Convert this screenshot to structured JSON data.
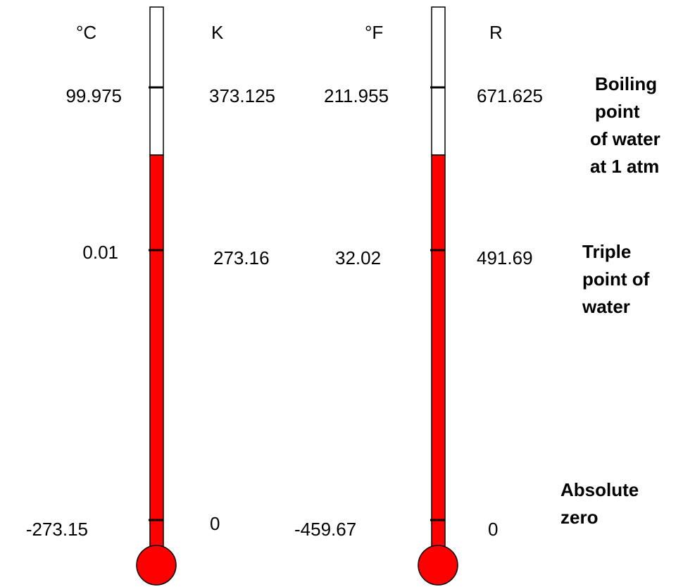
{
  "scales": [
    {
      "header": "°C",
      "values": [
        "99.975",
        "0.01",
        "-273.15"
      ]
    },
    {
      "header": "K",
      "values": [
        "373.125",
        "273.16",
        "0"
      ]
    },
    {
      "header": "°F",
      "values": [
        "211.955",
        "32.02",
        "-459.67"
      ]
    },
    {
      "header": "R",
      "values": [
        "671.625",
        "491.69",
        "0"
      ]
    }
  ],
  "annotations": [
    {
      "lines": [
        "Boiling",
        "point",
        "of water",
        "at 1 atm"
      ]
    },
    {
      "lines": [
        "Triple",
        "point of",
        "water"
      ]
    },
    {
      "lines": [
        "Absolute",
        "zero"
      ]
    }
  ]
}
